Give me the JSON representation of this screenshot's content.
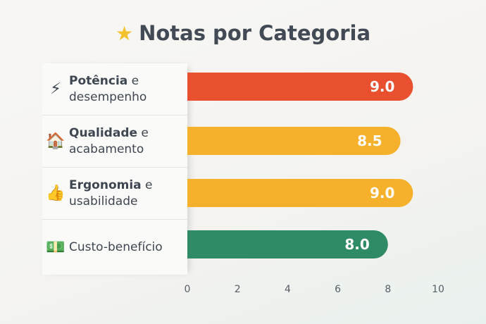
{
  "chart_data": {
    "type": "bar",
    "orientation": "horizontal",
    "title": "Notas por Categoria",
    "title_icon": "star-icon",
    "categories": [
      {
        "bold": "Potência",
        "rest": " e",
        "line2": "desempenho",
        "icon": "lightning-icon",
        "glyph": "⚡",
        "color": "#e8502f"
      },
      {
        "bold": "Qualidade",
        "rest": " e",
        "line2": "acabamento",
        "icon": "house-icon",
        "glyph": "🏠",
        "color": "#f6b12c"
      },
      {
        "bold": "Ergonomia",
        "rest": " e",
        "line2": "usabilidade",
        "icon": "thumbs-up-icon",
        "glyph": "👍",
        "color": "#f6b12c"
      },
      {
        "bold": "",
        "rest": "Custo-benefício",
        "line2": "",
        "icon": "money-icon",
        "glyph": "💵",
        "color": "#2f8a66"
      }
    ],
    "values": [
      9.0,
      8.5,
      9.0,
      8.0
    ],
    "data_labels": [
      "9.0",
      "8.5",
      "9.0",
      "8.0"
    ],
    "xlim": [
      0,
      10
    ],
    "xticks": [
      "0",
      "2",
      "4",
      "6",
      "8",
      "10"
    ],
    "grid": false
  }
}
